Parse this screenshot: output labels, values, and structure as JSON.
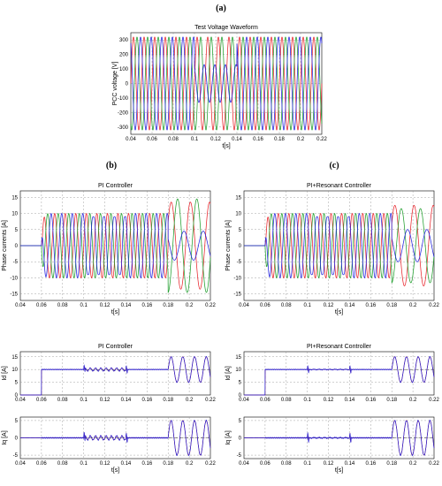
{
  "panel_labels": {
    "a": "(a)",
    "b": "(b)",
    "c": "(c)"
  },
  "colors": {
    "phase_a": "#e8242b",
    "phase_b": "#1f9e2c",
    "phase_c": "#2222dd",
    "ref": "#000000",
    "measured": "#2222dd",
    "controlled": "#c01d1d"
  },
  "chart_data": [
    {
      "id": "a",
      "type": "line",
      "title": "Test Voltage Waveform",
      "xlabel": "t[s]",
      "ylabel": "PCC voltage [V]",
      "xlim": [
        0.04,
        0.22
      ],
      "ylim": [
        -350,
        350
      ],
      "xticks": [
        0.04,
        0.06,
        0.08,
        0.1,
        0.12,
        0.14,
        0.16,
        0.18,
        0.2,
        0.22
      ],
      "xtick_labels": [
        "0.04",
        "0.06",
        "0.08",
        "0.1",
        "0.12",
        "0.14",
        "0.16",
        "0.18",
        "0.2",
        "0.22"
      ],
      "yticks": [
        -300,
        -200,
        -100,
        0,
        100,
        200,
        300
      ],
      "ytick_labels": [
        "-300",
        "-200",
        "-100",
        "0",
        "100",
        "200",
        "300"
      ],
      "frequency_hz": 100,
      "amplitude": 320,
      "sag": {
        "start": 0.1,
        "end": 0.14,
        "phase": "c",
        "amplitude": 130
      }
    },
    {
      "id": "b",
      "type": "line",
      "title": "PI Controller",
      "xlabel": "t[s]",
      "ylabel": "Phase currents [A]",
      "xlim": [
        0.04,
        0.22
      ],
      "ylim": [
        -17,
        17
      ],
      "xticks": [
        0.04,
        0.06,
        0.08,
        0.1,
        0.12,
        0.14,
        0.16,
        0.18,
        0.2,
        0.22
      ],
      "xtick_labels": [
        "0.04",
        "0.06",
        "0.08",
        "0.1",
        "0.12",
        "0.14",
        "0.16",
        "0.18",
        "0.2",
        "0.22"
      ],
      "yticks": [
        -15,
        -10,
        -5,
        0,
        5,
        10,
        15
      ],
      "ytick_labels": [
        "-15",
        "-10",
        "-5",
        "0",
        "5",
        "10",
        "15"
      ],
      "frequency_hz": 100,
      "start_time": 0.06,
      "amplitude": 10,
      "distortion_interval": [
        0.1,
        0.14
      ],
      "unbalanced_from": 0.18,
      "unbalanced_amplitudes": {
        "a": 13.5,
        "b": 14.5,
        "c": 4.5
      }
    },
    {
      "id": "c",
      "type": "line",
      "title": "PI+Resonant Controller",
      "xlabel": "t[s]",
      "ylabel": "Phase currents [A]",
      "xlim": [
        0.04,
        0.22
      ],
      "ylim": [
        -17,
        17
      ],
      "xticks": [
        0.04,
        0.06,
        0.08,
        0.1,
        0.12,
        0.14,
        0.16,
        0.18,
        0.2,
        0.22
      ],
      "xtick_labels": [
        "0.04",
        "0.06",
        "0.08",
        "0.1",
        "0.12",
        "0.14",
        "0.16",
        "0.18",
        "0.2",
        "0.22"
      ],
      "yticks": [
        -15,
        -10,
        -5,
        0,
        5,
        10,
        15
      ],
      "ytick_labels": [
        "-15",
        "-10",
        "-5",
        "0",
        "5",
        "10",
        "15"
      ],
      "frequency_hz": 100,
      "start_time": 0.06,
      "amplitude": 10,
      "distortion_interval": [
        0.1,
        0.14
      ],
      "unbalanced_from": 0.18,
      "unbalanced_amplitudes": {
        "a": 12.5,
        "b": 11.5,
        "c": 5
      }
    },
    {
      "id": "b-id",
      "type": "line",
      "title": "PI Controller",
      "xlabel": "",
      "ylabel": "Id [A]",
      "xlim": [
        0.04,
        0.22
      ],
      "ylim": [
        0,
        17
      ],
      "xticks": [
        0.04,
        0.06,
        0.08,
        0.1,
        0.12,
        0.14,
        0.16,
        0.18,
        0.2,
        0.22
      ],
      "xtick_labels": [
        "0.04",
        "0.06",
        "0.08",
        "0.1",
        "0.12",
        "0.14",
        "0.16",
        "0.18",
        "0.2",
        "0.22"
      ],
      "yticks": [
        0,
        5,
        10,
        15
      ],
      "ytick_labels": [
        "0",
        "5",
        "10",
        "15"
      ],
      "reference": 10,
      "step_time": 0.06,
      "ripple_interval": [
        0.1,
        0.14
      ],
      "ripple_amplitude": 0.6,
      "oscillation_from": 0.18,
      "oscillation_center": 10,
      "oscillation_amplitude": 5
    },
    {
      "id": "b-iq",
      "type": "line",
      "title": "",
      "xlabel": "t[s]",
      "ylabel": "Iq [A]",
      "xlim": [
        0.04,
        0.22
      ],
      "ylim": [
        -6,
        6
      ],
      "xticks": [
        0.04,
        0.06,
        0.08,
        0.1,
        0.12,
        0.14,
        0.16,
        0.18,
        0.2,
        0.22
      ],
      "xtick_labels": [
        "0.04",
        "0.06",
        "0.08",
        "0.1",
        "0.12",
        "0.14",
        "0.16",
        "0.18",
        "0.2",
        "0.22"
      ],
      "yticks": [
        -5,
        0,
        5
      ],
      "ytick_labels": [
        "-5",
        "0",
        "5"
      ],
      "reference": 0,
      "step_time": 0.06,
      "ripple_interval": [
        0.1,
        0.14
      ],
      "ripple_amplitude": 0.6,
      "oscillation_from": 0.18,
      "oscillation_center": 0,
      "oscillation_amplitude": 5
    },
    {
      "id": "c-id",
      "type": "line",
      "title": "PI+Resonant Controller",
      "xlabel": "",
      "ylabel": "Id [A]",
      "xlim": [
        0.04,
        0.22
      ],
      "ylim": [
        0,
        17
      ],
      "xticks": [
        0.04,
        0.06,
        0.08,
        0.1,
        0.12,
        0.14,
        0.16,
        0.18,
        0.2,
        0.22
      ],
      "xtick_labels": [
        "0.04",
        "0.06",
        "0.08",
        "0.1",
        "0.12",
        "0.14",
        "0.16",
        "0.18",
        "0.2",
        "0.22"
      ],
      "yticks": [
        0,
        5,
        10,
        15
      ],
      "ytick_labels": [
        "0",
        "5",
        "10",
        "15"
      ],
      "reference": 10,
      "step_time": 0.06,
      "ripple_interval": [
        0.1,
        0.14
      ],
      "ripple_amplitude": 0.1,
      "oscillation_from": 0.18,
      "oscillation_center": 10,
      "oscillation_amplitude": 5
    },
    {
      "id": "c-iq",
      "type": "line",
      "title": "",
      "xlabel": "t[s]",
      "ylabel": "Iq [A]",
      "xlim": [
        0.04,
        0.22
      ],
      "ylim": [
        -6,
        6
      ],
      "xticks": [
        0.04,
        0.06,
        0.08,
        0.1,
        0.12,
        0.14,
        0.16,
        0.18,
        0.2,
        0.22
      ],
      "xtick_labels": [
        "0.04",
        "0.06",
        "0.08",
        "0.1",
        "0.12",
        "0.14",
        "0.16",
        "0.18",
        "0.2",
        "0.22"
      ],
      "yticks": [
        -5,
        0,
        5
      ],
      "ytick_labels": [
        "-5",
        "0",
        "5"
      ],
      "reference": 0,
      "step_time": 0.06,
      "ripple_interval": [
        0.1,
        0.14
      ],
      "ripple_amplitude": 0.1,
      "oscillation_from": 0.18,
      "oscillation_center": 0,
      "oscillation_amplitude": 5
    }
  ]
}
